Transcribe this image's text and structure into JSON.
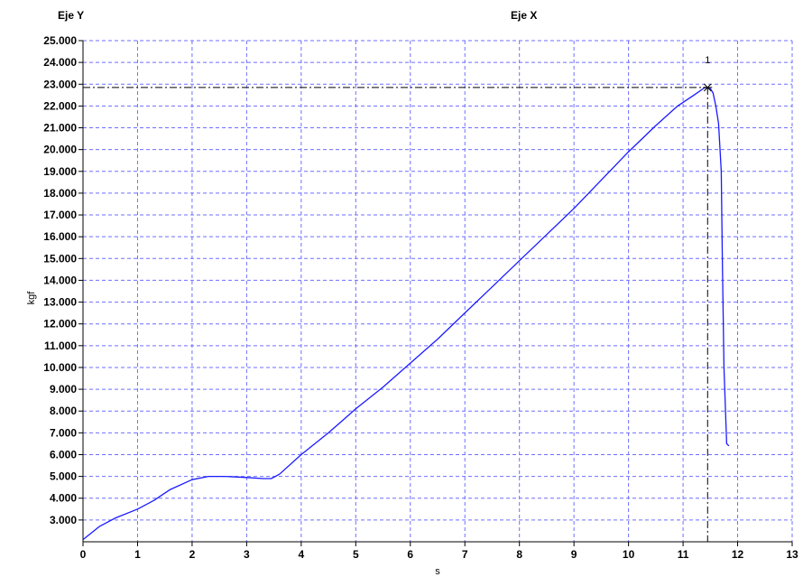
{
  "header": {
    "y_axis_title": "Eje Y",
    "x_axis_title": "Eje X"
  },
  "colors": {
    "series": "#1a1aff",
    "grid": "#6f6fff",
    "crosshair": "#000000"
  },
  "chart_data": {
    "type": "line",
    "xlabel": "s",
    "ylabel": "kgf",
    "xlim": [
      0,
      13
    ],
    "ylim": [
      2000,
      25000
    ],
    "x_ticks": [
      0,
      1,
      2,
      3,
      4,
      5,
      6,
      7,
      8,
      9,
      10,
      11,
      12,
      13
    ],
    "y_ticks": [
      3000,
      4000,
      5000,
      6000,
      7000,
      8000,
      9000,
      10000,
      11000,
      12000,
      13000,
      14000,
      15000,
      16000,
      17000,
      18000,
      19000,
      20000,
      21000,
      22000,
      23000,
      24000,
      25000
    ],
    "x_tick_labels": [
      "0",
      "1",
      "2",
      "3",
      "4",
      "5",
      "6",
      "7",
      "8",
      "9",
      "10",
      "11",
      "12",
      "13"
    ],
    "y_tick_labels": [
      "3.000",
      "4.000",
      "5.000",
      "6.000",
      "7.000",
      "8.000",
      "9.000",
      "10.000",
      "11.000",
      "12.000",
      "13.000",
      "14.000",
      "15.000",
      "16.000",
      "17.000",
      "18.000",
      "19.000",
      "20.000",
      "21.000",
      "22.000",
      "23.000",
      "24.000",
      "25.000"
    ],
    "grid": true,
    "series": [
      {
        "x": [
          0,
          0.3,
          0.6,
          1.0,
          1.3,
          1.6,
          2.0,
          2.3,
          2.6,
          3.0,
          3.3,
          3.45,
          3.6,
          4.0,
          4.5,
          5.0,
          5.5,
          6.0,
          6.5,
          7.0,
          7.5,
          8.0,
          8.5,
          9.0,
          9.5,
          10.0,
          10.5,
          10.9,
          11.2,
          11.4,
          11.5,
          11.55,
          11.6,
          11.65,
          11.7,
          11.72,
          11.75,
          11.8,
          11.84
        ],
        "y": [
          2100,
          2700,
          3100,
          3500,
          3900,
          4400,
          4850,
          5000,
          5000,
          4950,
          4900,
          4900,
          5100,
          6000,
          7000,
          8100,
          9100,
          10200,
          11300,
          12500,
          13700,
          14900,
          16100,
          17300,
          18600,
          19900,
          21100,
          22000,
          22500,
          22850,
          22800,
          22600,
          22000,
          21200,
          19000,
          15000,
          10000,
          6500,
          6400
        ]
      }
    ],
    "annotations": [
      {
        "label": "1",
        "x": 11.45,
        "y": 22850
      }
    ]
  }
}
